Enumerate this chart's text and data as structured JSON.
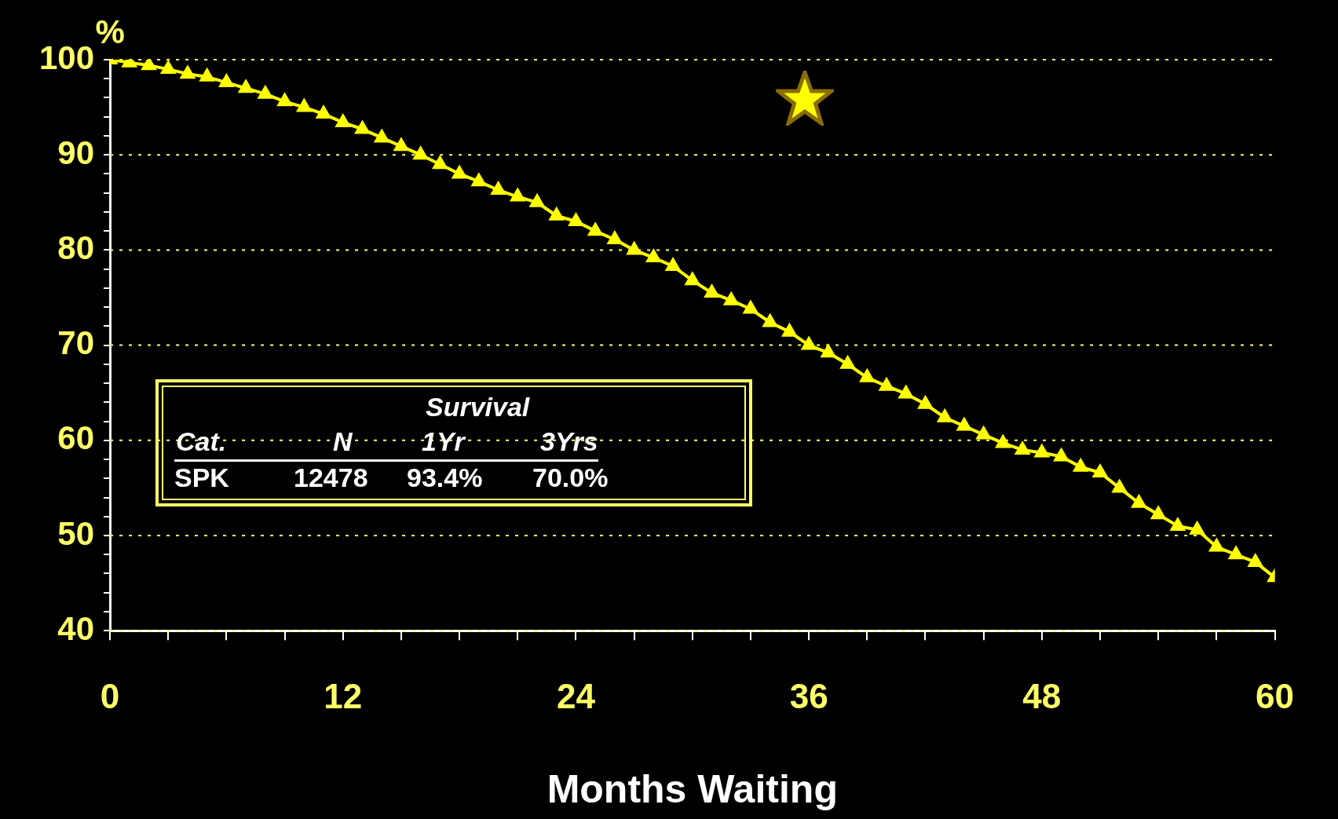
{
  "chart_data": {
    "type": "line",
    "xlabel": "Months Waiting",
    "ylabel": "%",
    "x": [
      0,
      1,
      2,
      3,
      4,
      5,
      6,
      7,
      8,
      9,
      10,
      11,
      12,
      13,
      14,
      15,
      16,
      17,
      18,
      19,
      20,
      21,
      22,
      23,
      24,
      25,
      26,
      27,
      28,
      29,
      30,
      31,
      32,
      33,
      34,
      35,
      36,
      37,
      38,
      39,
      40,
      41,
      42,
      43,
      44,
      45,
      46,
      47,
      48,
      49,
      50,
      51,
      52,
      53,
      54,
      55,
      56,
      57,
      58,
      59,
      60
    ],
    "series": [
      {
        "color": "#ffff00",
        "values": [
          100,
          99.7,
          99.4,
          99.0,
          98.5,
          98.2,
          97.6,
          97.0,
          96.4,
          95.6,
          95.0,
          94.3,
          93.4,
          92.7,
          91.8,
          90.9,
          90.0,
          89.0,
          88.0,
          87.2,
          86.3,
          85.6,
          85.0,
          83.6,
          83.0,
          82.0,
          81.1,
          80.0,
          79.2,
          78.3,
          76.8,
          75.5,
          74.7,
          73.8,
          72.4,
          71.4,
          70.0,
          69.2,
          68.0,
          66.6,
          65.7,
          64.9,
          63.8,
          62.4,
          61.5,
          60.6,
          59.7,
          59.0,
          58.7,
          58.3,
          57.2,
          56.6,
          55.0,
          53.4,
          52.2,
          51.0,
          50.6,
          48.8,
          48.0,
          47.2,
          45.6
        ]
      }
    ],
    "xlim": [
      0,
      60
    ],
    "xticks": [
      0,
      {
        "value": 3,
        "label": null
      },
      {
        "value": 6,
        "label": null
      },
      {
        "value": 9,
        "label": null
      },
      12,
      {
        "value": 15,
        "label": null
      },
      {
        "value": 18,
        "label": null
      },
      {
        "value": 21,
        "label": null
      },
      24,
      {
        "value": 27,
        "label": null
      },
      {
        "value": 30,
        "label": null
      },
      {
        "value": 33,
        "label": null
      },
      36,
      {
        "value": 39,
        "label": null
      },
      {
        "value": 42,
        "label": null
      },
      {
        "value": 45,
        "label": null
      },
      48,
      {
        "value": 51,
        "label": null
      },
      {
        "value": 54,
        "label": null
      },
      {
        "value": 57,
        "label": null
      },
      60
    ],
    "ylim": [
      40,
      100
    ],
    "yticks": [
      40,
      {
        "value": 42,
        "label": null
      },
      {
        "value": 44,
        "label": null
      },
      {
        "value": 46,
        "label": null
      },
      {
        "value": 48,
        "label": null
      },
      50,
      {
        "value": 52,
        "label": null
      },
      {
        "value": 54,
        "label": null
      },
      {
        "value": 56,
        "label": null
      },
      {
        "value": 58,
        "label": null
      },
      60,
      {
        "value": 62,
        "label": null
      },
      {
        "value": 64,
        "label": null
      },
      {
        "value": 66,
        "label": null
      },
      {
        "value": 68,
        "label": null
      },
      70,
      {
        "value": 72,
        "label": null
      },
      {
        "value": 74,
        "label": null
      },
      {
        "value": 76,
        "label": null
      },
      {
        "value": 78,
        "label": null
      },
      80,
      {
        "value": 82,
        "label": null
      },
      {
        "value": 84,
        "label": null
      },
      {
        "value": 86,
        "label": null
      },
      {
        "value": 88,
        "label": null
      },
      90,
      {
        "value": 92,
        "label": null
      },
      {
        "value": 94,
        "label": null
      },
      {
        "value": 96,
        "label": null
      },
      {
        "value": 98,
        "label": null
      },
      100
    ],
    "grid": "y",
    "legend": false,
    "marker": "triangle",
    "line_style": "solid",
    "annotations": [
      "Survival",
      "Cat.",
      "N",
      "1Yr",
      "3Yrs",
      "SPK",
      "12478",
      "93.4%",
      "70.0%"
    ]
  }
}
